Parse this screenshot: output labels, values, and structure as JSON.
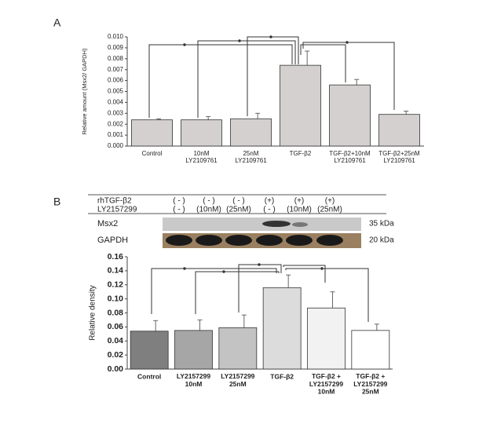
{
  "panels": [
    "A",
    "B"
  ],
  "blot": {
    "rows": [
      {
        "label": "rhTGF-β2",
        "lanes": [
          "( - )",
          "( - )",
          "( - )",
          "(+)",
          "(+)",
          "(+)"
        ]
      },
      {
        "label": "LY2157299",
        "lanes": [
          "( - )",
          "(10nM)",
          "(25nM)",
          "( - )",
          "(10nM)",
          "(25nM)"
        ]
      }
    ],
    "bands": [
      {
        "name": "Msx2",
        "size": "35 kDa"
      },
      {
        "name": "GAPDH",
        "size": "20 kDa"
      }
    ]
  },
  "chart_data": [
    {
      "type": "bar",
      "y_label": "Relative amount (Msx2/ GAPDH)",
      "categories": [
        "Control",
        "10nM\nLY2109761",
        "25nM\nLY2109761",
        "TGF-β2",
        "TGF-β2+10nM\nLY2109761",
        "TGF-β2+25nM\nLY2109761"
      ],
      "values": [
        0.0024,
        0.0024,
        0.0025,
        0.0074,
        0.0056,
        0.0029
      ],
      "errors": [
        0.0001,
        0.0003,
        0.0005,
        0.0013,
        0.0005,
        0.0003
      ],
      "colors": [
        "#d4d0d0",
        "#d4d0d0",
        "#d4d0d0",
        "#d4d0d0",
        "#d4d0d0",
        "#d4d0d0"
      ],
      "ylim": [
        0,
        0.01
      ],
      "yticks": [
        {
          "value": 0,
          "label": "0.000"
        },
        {
          "value": 0.001,
          "label": "0.001"
        },
        {
          "value": 0.002,
          "label": "0.002"
        },
        {
          "value": 0.003,
          "label": "0.003"
        },
        {
          "value": 0.004,
          "label": "0.004"
        },
        {
          "value": 0.005,
          "label": "0.005"
        },
        {
          "value": 0.006,
          "label": "0.006"
        },
        {
          "value": 0.007,
          "label": "0.007"
        },
        {
          "value": 0.008,
          "label": "0.008"
        },
        {
          "value": 0.009,
          "label": "0.009"
        },
        {
          "value": 0.01,
          "label": "0.010"
        }
      ]
    },
    {
      "type": "bar",
      "y_label": "Relative density",
      "categories": [
        "Control",
        "LY2157299\n10nM",
        "LY2157299\n25nM",
        "TGF-β2",
        "TGF-β2 +\nLY2157299\n10nM",
        "TGF-β2 +\nLY2157299\n25nM"
      ],
      "values": [
        0.054,
        0.055,
        0.059,
        0.116,
        0.087,
        0.055
      ],
      "errors": [
        0.015,
        0.015,
        0.018,
        0.018,
        0.023,
        0.009
      ],
      "colors": [
        "#7f7f7f",
        "#a6a6a6",
        "#c3c3c3",
        "#dcdcdc",
        "#f2f2f2",
        "#ffffff"
      ],
      "ylim": [
        0,
        0.16
      ],
      "yticks": [
        {
          "value": 0,
          "label": "0.00"
        },
        {
          "value": 0.02,
          "label": "0.02"
        },
        {
          "value": 0.04,
          "label": "0.04"
        },
        {
          "value": 0.06,
          "label": "0.06"
        },
        {
          "value": 0.08,
          "label": "0.08"
        },
        {
          "value": 0.1,
          "label": "0.10"
        },
        {
          "value": 0.12,
          "label": "0.12"
        },
        {
          "value": 0.14,
          "label": "0.14"
        },
        {
          "value": 0.16,
          "label": "0.16"
        }
      ]
    }
  ]
}
